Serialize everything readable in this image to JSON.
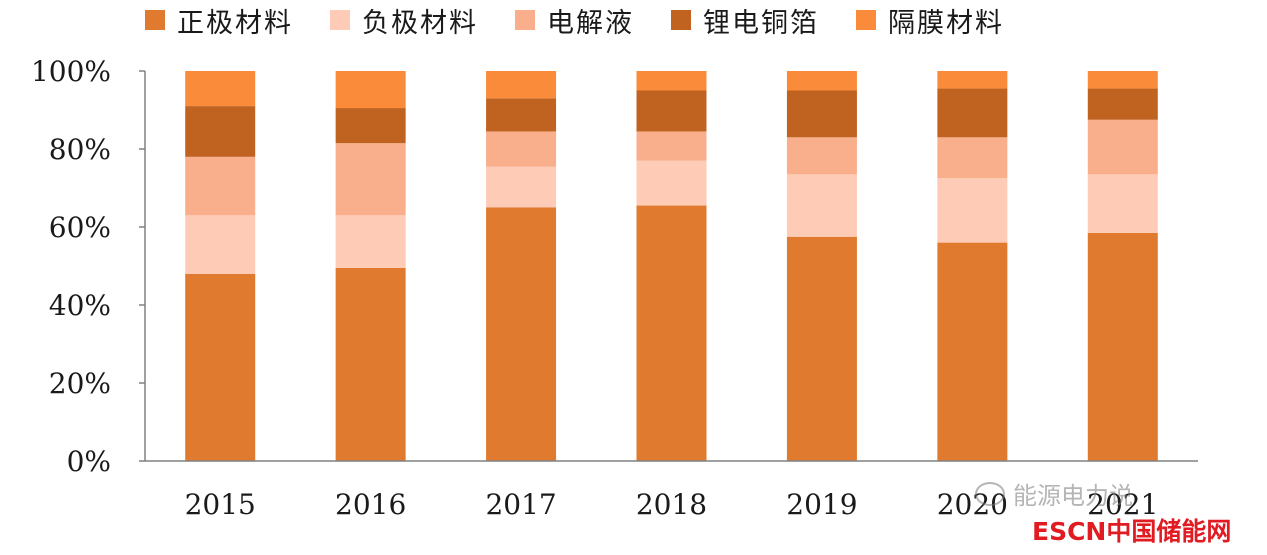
{
  "chart_data": {
    "type": "bar",
    "stacked": true,
    "percent": true,
    "categories": [
      "2015",
      "2016",
      "2017",
      "2018",
      "2019",
      "2020",
      "2021"
    ],
    "series": [
      {
        "name": "正极材料",
        "color": "#E07A2E",
        "values": [
          48,
          49.5,
          65,
          65.5,
          57.5,
          56,
          58.5
        ]
      },
      {
        "name": "负极材料",
        "color": "#FDCBB6",
        "values": [
          15,
          13.5,
          10.5,
          11.5,
          16,
          16.5,
          15
        ]
      },
      {
        "name": "电解液",
        "color": "#F9AE8C",
        "values": [
          15,
          18.5,
          9,
          7.5,
          9.5,
          10.5,
          14
        ]
      },
      {
        "name": "锂电铜箔",
        "color": "#C06220",
        "values": [
          13,
          9,
          8.5,
          10.5,
          12,
          12.5,
          8
        ]
      },
      {
        "name": "隔膜材料",
        "color": "#F98B3A",
        "values": [
          9,
          9.5,
          7,
          5,
          5,
          4.5,
          4.5
        ]
      }
    ],
    "yticks": [
      "0%",
      "20%",
      "40%",
      "60%",
      "80%",
      "100%"
    ],
    "ylim": [
      0,
      100
    ],
    "grid": false,
    "legend_position": "top"
  },
  "watermark": {
    "text": "能源电力说"
  },
  "logo": {
    "text": "ESCN中国储能网"
  }
}
